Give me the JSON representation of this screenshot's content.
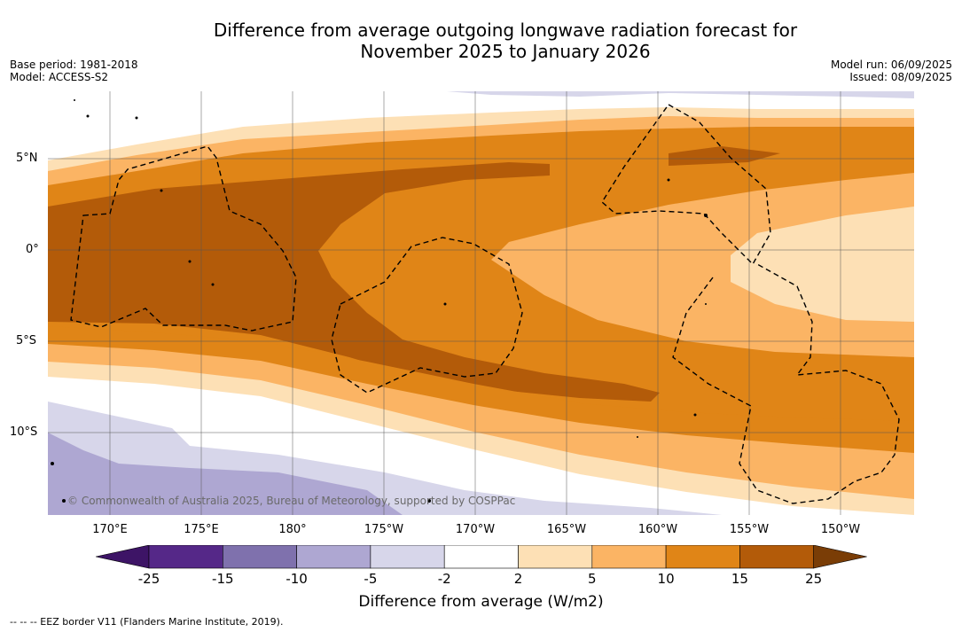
{
  "title": {
    "line1": "Difference from average outgoing longwave radiation forecast for",
    "line2": "November 2025 to January 2026"
  },
  "meta": {
    "base_period": "Base period: 1981-2018",
    "model": "Model: ACCESS-S2",
    "model_run": "Model run: 06/09/2025",
    "issued": "Issued: 08/09/2025"
  },
  "map": {
    "copyright": "© Commonwealth of Australia 2025, Bureau of Meteorology, supported by COSPPac",
    "lat_labels": [
      "5°N",
      "0°",
      "5°S",
      "10°S"
    ],
    "lon_labels": [
      "170°E",
      "175°E",
      "180°",
      "175°W",
      "170°W",
      "165°W",
      "160°W",
      "155°W",
      "150°W"
    ]
  },
  "colorbar": {
    "ticks": [
      "-25",
      "-15",
      "-10",
      "-5",
      "-2",
      "2",
      "5",
      "10",
      "15",
      "25"
    ],
    "colors": [
      "#3d1466",
      "#552888",
      "#7f71ad",
      "#aea7d2",
      "#d7d6ea",
      "#ffffff",
      "#fde0b5",
      "#fbb464",
      "#e08517",
      "#b35b09",
      "#7a3d06"
    ],
    "label": "Difference from average (W/m2)"
  },
  "footnote": "--  --  -- EEZ border V11 (Flanders Marine Institute, 2019)."
}
